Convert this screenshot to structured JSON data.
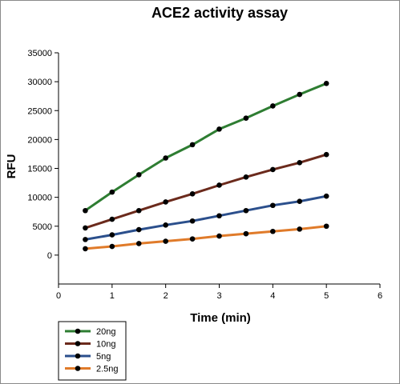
{
  "chart_data": {
    "type": "line",
    "title": "ACE2 activity assay",
    "xlabel": "Time (min)",
    "ylabel": "RFU",
    "xlim": [
      0,
      6
    ],
    "ylim": [
      -5000,
      35000
    ],
    "xticks": [
      0,
      1,
      2,
      3,
      4,
      5,
      6
    ],
    "yticks": [
      0,
      5000,
      10000,
      15000,
      20000,
      25000,
      30000,
      35000
    ],
    "grid": false,
    "legend_position": "bottom-left, below plot",
    "x": [
      0.5,
      1,
      1.5,
      2,
      2.5,
      3,
      3.5,
      4,
      4.5,
      5
    ],
    "series": [
      {
        "name": "20ng",
        "color": "#2e7d32",
        "values": [
          7700,
          10900,
          13900,
          16800,
          19100,
          21800,
          23700,
          25800,
          27800,
          29700
        ]
      },
      {
        "name": "10ng",
        "color": "#6b2a1c",
        "values": [
          4700,
          6200,
          7700,
          9200,
          10600,
          12100,
          13500,
          14800,
          16000,
          17400
        ]
      },
      {
        "name": "5ng",
        "color": "#2b4f8c",
        "values": [
          2700,
          3500,
          4400,
          5200,
          5900,
          6800,
          7700,
          8600,
          9300,
          10200
        ]
      },
      {
        "name": "2.5ng",
        "color": "#e07b2a",
        "values": [
          1100,
          1500,
          2000,
          2400,
          2800,
          3300,
          3700,
          4100,
          4500,
          5000
        ]
      }
    ]
  }
}
